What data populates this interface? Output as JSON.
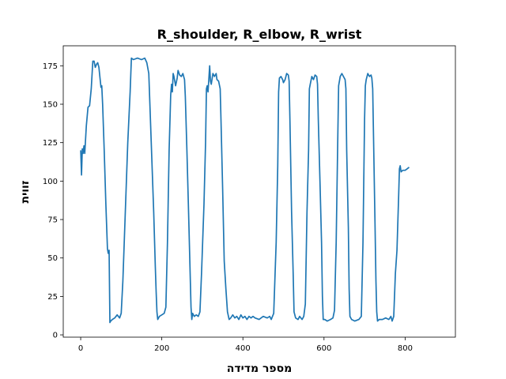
{
  "chart_data": {
    "type": "line",
    "title": "R_shoulder, R_elbow, R_wrist",
    "xlabel": "מספר מדידה",
    "ylabel": "זווית",
    "xlim": [
      -43,
      924
    ],
    "ylim": [
      -1.5,
      188
    ],
    "xticks": [
      0,
      200,
      400,
      600,
      800
    ],
    "yticks": [
      0,
      25,
      50,
      75,
      100,
      125,
      150,
      175
    ],
    "grid": false,
    "series": [
      {
        "color": "#1f77b4",
        "points": [
          [
            0,
            120
          ],
          [
            2,
            104
          ],
          [
            4,
            121
          ],
          [
            6,
            118
          ],
          [
            8,
            123
          ],
          [
            10,
            118
          ],
          [
            14,
            136
          ],
          [
            18,
            148
          ],
          [
            22,
            149
          ],
          [
            26,
            160
          ],
          [
            30,
            178
          ],
          [
            33,
            178
          ],
          [
            36,
            174
          ],
          [
            39,
            176
          ],
          [
            42,
            177
          ],
          [
            45,
            174
          ],
          [
            48,
            166
          ],
          [
            50,
            161
          ],
          [
            52,
            162
          ],
          [
            54,
            150
          ],
          [
            58,
            120
          ],
          [
            62,
            85
          ],
          [
            66,
            56
          ],
          [
            68,
            53
          ],
          [
            70,
            55
          ],
          [
            72,
            8
          ],
          [
            74,
            9
          ],
          [
            78,
            10
          ],
          [
            84,
            11
          ],
          [
            90,
            13
          ],
          [
            96,
            11
          ],
          [
            100,
            14
          ],
          [
            104,
            35
          ],
          [
            110,
            80
          ],
          [
            116,
            125
          ],
          [
            122,
            158
          ],
          [
            125,
            180
          ],
          [
            130,
            179
          ],
          [
            140,
            180
          ],
          [
            150,
            179
          ],
          [
            158,
            180
          ],
          [
            163,
            177
          ],
          [
            168,
            170
          ],
          [
            174,
            125
          ],
          [
            180,
            80
          ],
          [
            184,
            45
          ],
          [
            186,
            28
          ],
          [
            188,
            15
          ],
          [
            190,
            10
          ],
          [
            194,
            12
          ],
          [
            200,
            13
          ],
          [
            206,
            14
          ],
          [
            210,
            18
          ],
          [
            214,
            60
          ],
          [
            218,
            120
          ],
          [
            222,
            156
          ],
          [
            224,
            163
          ],
          [
            226,
            158
          ],
          [
            228,
            170
          ],
          [
            230,
            168
          ],
          [
            234,
            162
          ],
          [
            238,
            167
          ],
          [
            240,
            172
          ],
          [
            244,
            169
          ],
          [
            248,
            168
          ],
          [
            252,
            170
          ],
          [
            256,
            166
          ],
          [
            258,
            155
          ],
          [
            262,
            120
          ],
          [
            266,
            80
          ],
          [
            270,
            40
          ],
          [
            272,
            18
          ],
          [
            274,
            10
          ],
          [
            276,
            14
          ],
          [
            280,
            12
          ],
          [
            285,
            13
          ],
          [
            290,
            12
          ],
          [
            294,
            15
          ],
          [
            298,
            40
          ],
          [
            304,
            85
          ],
          [
            308,
            125
          ],
          [
            310,
            160
          ],
          [
            312,
            162
          ],
          [
            314,
            158
          ],
          [
            316,
            166
          ],
          [
            318,
            175
          ],
          [
            320,
            165
          ],
          [
            322,
            163
          ],
          [
            326,
            170
          ],
          [
            330,
            168
          ],
          [
            334,
            170
          ],
          [
            336,
            166
          ],
          [
            340,
            165
          ],
          [
            344,
            160
          ],
          [
            346,
            140
          ],
          [
            350,
            95
          ],
          [
            354,
            48
          ],
          [
            358,
            30
          ],
          [
            362,
            15
          ],
          [
            366,
            10
          ],
          [
            370,
            11
          ],
          [
            375,
            13
          ],
          [
            380,
            11
          ],
          [
            385,
            12
          ],
          [
            390,
            10
          ],
          [
            395,
            13
          ],
          [
            400,
            11
          ],
          [
            405,
            12
          ],
          [
            410,
            10
          ],
          [
            415,
            12
          ],
          [
            420,
            11
          ],
          [
            425,
            12
          ],
          [
            430,
            11
          ],
          [
            440,
            10
          ],
          [
            450,
            12
          ],
          [
            460,
            11
          ],
          [
            466,
            12
          ],
          [
            470,
            10
          ],
          [
            476,
            14
          ],
          [
            482,
            60
          ],
          [
            486,
            110
          ],
          [
            488,
            158
          ],
          [
            490,
            167
          ],
          [
            494,
            168
          ],
          [
            498,
            166
          ],
          [
            500,
            164
          ],
          [
            504,
            166
          ],
          [
            508,
            170
          ],
          [
            512,
            169
          ],
          [
            514,
            165
          ],
          [
            516,
            140
          ],
          [
            520,
            80
          ],
          [
            524,
            40
          ],
          [
            526,
            15
          ],
          [
            530,
            11
          ],
          [
            536,
            10
          ],
          [
            540,
            12
          ],
          [
            546,
            10
          ],
          [
            550,
            12
          ],
          [
            554,
            20
          ],
          [
            558,
            80
          ],
          [
            562,
            120
          ],
          [
            564,
            160
          ],
          [
            566,
            163
          ],
          [
            570,
            168
          ],
          [
            574,
            166
          ],
          [
            578,
            169
          ],
          [
            582,
            168
          ],
          [
            584,
            163
          ],
          [
            586,
            140
          ],
          [
            590,
            100
          ],
          [
            594,
            60
          ],
          [
            596,
            25
          ],
          [
            598,
            10
          ],
          [
            602,
            10
          ],
          [
            608,
            9
          ],
          [
            616,
            10
          ],
          [
            622,
            11
          ],
          [
            626,
            16
          ],
          [
            630,
            60
          ],
          [
            634,
            130
          ],
          [
            636,
            162
          ],
          [
            638,
            165
          ],
          [
            640,
            168
          ],
          [
            644,
            170
          ],
          [
            648,
            168
          ],
          [
            652,
            166
          ],
          [
            654,
            160
          ],
          [
            656,
            120
          ],
          [
            660,
            70
          ],
          [
            662,
            30
          ],
          [
            664,
            12
          ],
          [
            668,
            10
          ],
          [
            676,
            9
          ],
          [
            686,
            10
          ],
          [
            692,
            12
          ],
          [
            696,
            60
          ],
          [
            700,
            140
          ],
          [
            702,
            162
          ],
          [
            704,
            166
          ],
          [
            708,
            170
          ],
          [
            712,
            168
          ],
          [
            716,
            169
          ],
          [
            718,
            167
          ],
          [
            720,
            160
          ],
          [
            722,
            130
          ],
          [
            726,
            70
          ],
          [
            728,
            35
          ],
          [
            730,
            15
          ],
          [
            732,
            9
          ],
          [
            736,
            10
          ],
          [
            744,
            10
          ],
          [
            752,
            11
          ],
          [
            760,
            10
          ],
          [
            765,
            12
          ],
          [
            768,
            9
          ],
          [
            772,
            12
          ],
          [
            776,
            40
          ],
          [
            780,
            55
          ],
          [
            784,
            90
          ],
          [
            786,
            108
          ],
          [
            788,
            110
          ],
          [
            790,
            106
          ],
          [
            794,
            107
          ],
          [
            800,
            107
          ],
          [
            805,
            108
          ],
          [
            810,
            109
          ]
        ]
      }
    ]
  }
}
